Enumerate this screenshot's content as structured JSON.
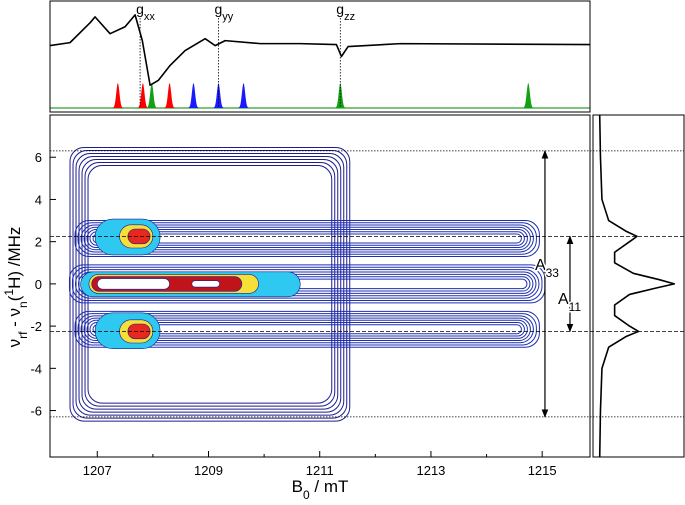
{
  "chart_data": {
    "type": "contour",
    "xlabel": [
      {
        "text": "B"
      },
      {
        "text": "0",
        "shift": "sub"
      },
      {
        "text": " / mT"
      }
    ],
    "ylabel": [
      {
        "text": "ν"
      },
      {
        "text": "rf",
        "shift": "sub"
      },
      {
        "text": " - ν"
      },
      {
        "text": "n",
        "shift": "sub"
      },
      {
        "text": "("
      },
      {
        "text": "1",
        "shift": "super"
      },
      {
        "text": "H) /MHz"
      }
    ],
    "xlim": [
      1206.15,
      1215.86
    ],
    "xticks": [
      1207,
      1209,
      1211,
      1213,
      1215
    ],
    "x_minor_ticks": [
      1208,
      1210,
      1212,
      1214
    ],
    "ylim": [
      -8.2,
      8
    ],
    "yticks": [
      -6,
      -4,
      -2,
      0,
      2,
      4,
      6
    ],
    "regions": [
      {
        "B": [
          1206.51,
          1211.54
        ],
        "nu": [
          -6.5,
          6.46
        ],
        "color": "#1c1c8f",
        "style": "lines"
      },
      {
        "B": [
          1206.6,
          1214.95
        ],
        "nu": [
          1.3,
          3.0
        ],
        "color": "#2030b0",
        "style": "lines"
      },
      {
        "B": [
          1206.5,
          1215.05
        ],
        "nu": [
          -0.9,
          0.9
        ],
        "color": "#2030b0",
        "style": "lines"
      },
      {
        "B": [
          1206.6,
          1214.95
        ],
        "nu": [
          -3.0,
          -1.3
        ],
        "color": "#2030b0",
        "style": "lines"
      },
      {
        "B": [
          1206.96,
          1208.13
        ],
        "nu": [
          1.37,
          3.07
        ],
        "color": "#2ec8f0",
        "style": "filled"
      },
      {
        "B": [
          1206.96,
          1208.13
        ],
        "nu": [
          -3.07,
          -1.37
        ],
        "color": "#2ec8f0",
        "style": "filled"
      },
      {
        "B": [
          1206.7,
          1210.65
        ],
        "nu": [
          -0.61,
          0.57
        ],
        "color": "#2ec8f0",
        "style": "filled"
      },
      {
        "B": [
          1207.4,
          1208.0
        ],
        "nu": [
          1.7,
          2.8
        ],
        "color": "#f5e03a",
        "style": "filled"
      },
      {
        "B": [
          1207.4,
          1208.0
        ],
        "nu": [
          -2.8,
          -1.7
        ],
        "color": "#f5e03a",
        "style": "filled"
      },
      {
        "B": [
          1206.85,
          1209.9
        ],
        "nu": [
          -0.45,
          0.45
        ],
        "color": "#f5e03a",
        "style": "filled"
      },
      {
        "B": [
          1207.55,
          1207.95
        ],
        "nu": [
          1.9,
          2.6
        ],
        "color": "#e8281e",
        "style": "filled"
      },
      {
        "B": [
          1207.55,
          1207.95
        ],
        "nu": [
          -2.6,
          -1.9
        ],
        "color": "#e8281e",
        "style": "filled"
      },
      {
        "B": [
          1206.9,
          1209.6
        ],
        "nu": [
          -0.35,
          0.35
        ],
        "color": "#c0141a",
        "style": "filled"
      },
      {
        "B": [
          1207.0,
          1208.3
        ],
        "nu": [
          -0.25,
          0.25
        ],
        "color": "#ffffff",
        "style": "filled"
      },
      {
        "B": [
          1208.7,
          1209.2
        ],
        "nu": [
          -0.15,
          0.15
        ],
        "color": "#ffffff",
        "style": "filled"
      }
    ],
    "hlines": [
      {
        "y": 6.3,
        "style": "dotted"
      },
      {
        "y": 2.25,
        "style": "dashed"
      },
      {
        "y": -2.25,
        "style": "dashed"
      },
      {
        "y": -6.3,
        "style": "dotted"
      }
    ],
    "arrows": [
      {
        "label": "A",
        "sub": "33",
        "B": 1215.05,
        "from": 6.3,
        "to": -6.3
      },
      {
        "label": "A",
        "sub": "11",
        "B": 1215.5,
        "from": 2.25,
        "to": -2.25
      }
    ],
    "epr": {
      "x": [
        1206.15,
        1206.51,
        1206.87,
        1206.96,
        1207.23,
        1207.5,
        1207.68,
        1207.81,
        1207.95,
        1208.1,
        1208.31,
        1208.58,
        1208.94,
        1209.12,
        1209.3,
        1209.93,
        1210.65,
        1211.3,
        1211.39,
        1211.51,
        1212.45,
        1215.86
      ],
      "values": [
        0,
        0.075,
        0.575,
        0.725,
        0.3,
        0.475,
        0.775,
        0.125,
        -1,
        -0.875,
        -0.5,
        -0.125,
        0.175,
        0,
        0.125,
        0.05,
        0.05,
        0.025,
        -0.275,
        -0.025,
        0.05,
        0.025
      ],
      "ylim": [
        -1.675,
        1.125
      ],
      "color": "#000000"
    },
    "g_markers": [
      {
        "label": "g",
        "sub": "xx",
        "B": 1207.77
      },
      {
        "label": "g",
        "sub": "yy",
        "B": 1209.18
      },
      {
        "label": "g",
        "sub": "zz",
        "B": 1211.37
      }
    ],
    "sticks": {
      "baseline_color": "#2ca02c",
      "ylim": [
        0,
        1.12
      ],
      "items": [
        {
          "B": 1207.37,
          "height": 1,
          "color": "#ff0000"
        },
        {
          "B": 1207.82,
          "height": 1,
          "color": "#ff0000"
        },
        {
          "B": 1208.3,
          "height": 1,
          "color": "#ff0000"
        },
        {
          "B": 1207.98,
          "height": 1,
          "color": "#14a014"
        },
        {
          "B": 1211.37,
          "height": 1,
          "color": "#14a014"
        },
        {
          "B": 1214.75,
          "height": 1,
          "color": "#14a014"
        },
        {
          "B": 1208.73,
          "height": 1,
          "color": "#1a1aff"
        },
        {
          "B": 1209.18,
          "height": 1,
          "color": "#1a1aff"
        },
        {
          "B": 1209.63,
          "height": 1,
          "color": "#1a1aff"
        }
      ]
    },
    "endor": {
      "y": [
        8,
        6,
        4,
        3,
        2.5,
        2.25,
        2,
        1.5,
        1,
        0.5,
        0.2,
        0,
        -0.2,
        -0.5,
        -1,
        -1.5,
        -2,
        -2.25,
        -2.5,
        -3,
        -4,
        -6,
        -8.2
      ],
      "values": [
        0,
        0.01,
        0.03,
        0.12,
        0.35,
        0.5,
        0.4,
        0.2,
        0.2,
        0.45,
        0.8,
        1,
        0.75,
        0.4,
        0.2,
        0.2,
        0.4,
        0.52,
        0.35,
        0.12,
        0.03,
        0.01,
        0
      ],
      "xlim": [
        -0.09,
        1.13
      ],
      "color": "#000000"
    }
  }
}
